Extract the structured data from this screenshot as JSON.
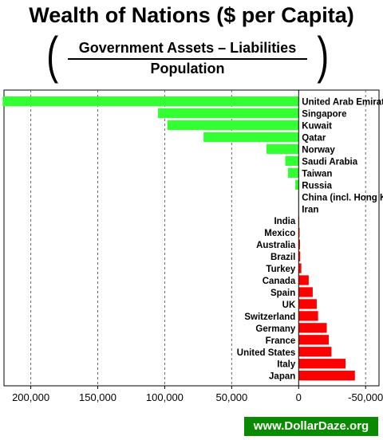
{
  "title": "Wealth of Nations ($ per Capita)",
  "formula": {
    "numerator": "Government Assets  –  Liabilities",
    "denominator": "Population",
    "paren_left": "(",
    "paren_right": ")"
  },
  "watermark": "www.DollarDaze.org",
  "chart_data": {
    "type": "bar",
    "orientation": "horizontal",
    "x_reversed": true,
    "xlim": [
      220000,
      -60000
    ],
    "xticks": [
      200000,
      150000,
      100000,
      50000,
      0,
      -50000
    ],
    "xtick_labels": [
      "200,000",
      "150,000",
      "100,000",
      "50,000",
      "0",
      "-50,000"
    ],
    "grid": "vertical dashed",
    "colors": {
      "positive": "#33ff33",
      "negative": "#ff0000"
    },
    "categories": [
      "United Arab Emirates",
      "Singapore",
      "Kuwait",
      "Qatar",
      "Norway",
      "Saudi Arabia",
      "Taiwan",
      "Russia",
      "China (incl. Hong Kong)",
      "Iran",
      "India",
      "Mexico",
      "Australia",
      "Brazil",
      "Turkey",
      "Canada",
      "Spain",
      "UK",
      "Switzerland",
      "Germany",
      "France",
      "United States",
      "Italy",
      "Japan"
    ],
    "values": [
      221000,
      105000,
      98000,
      71000,
      24000,
      10000,
      8000,
      2500,
      300,
      200,
      -300,
      -700,
      -1000,
      -1200,
      -2000,
      -7500,
      -10500,
      -13500,
      -14500,
      -21000,
      -22500,
      -24500,
      -35000,
      -42000
    ]
  }
}
